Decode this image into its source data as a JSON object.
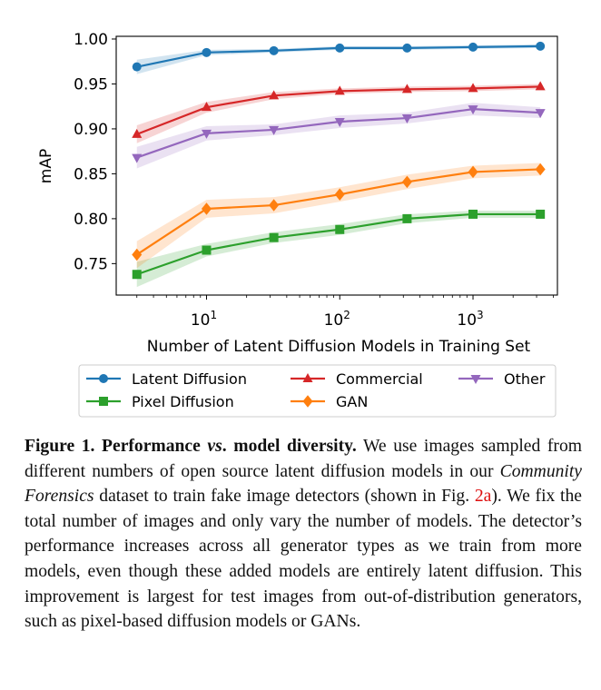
{
  "chart_data": {
    "type": "line",
    "xlabel": "Number of Latent Diffusion Models in Training Set",
    "ylabel": "mAP",
    "xscale": "log",
    "xlim": [
      2.1,
      4300
    ],
    "ylim": [
      0.715,
      1.003
    ],
    "xticks": [
      {
        "value": 10,
        "base": "10",
        "exp": "1"
      },
      {
        "value": 100,
        "base": "10",
        "exp": "2"
      },
      {
        "value": 1000,
        "base": "10",
        "exp": "3"
      }
    ],
    "yticks": [
      {
        "value": 0.75,
        "label": "0.75"
      },
      {
        "value": 0.8,
        "label": "0.80"
      },
      {
        "value": 0.85,
        "label": "0.85"
      },
      {
        "value": 0.9,
        "label": "0.90"
      },
      {
        "value": 0.95,
        "label": "0.95"
      },
      {
        "value": 1.0,
        "label": "1.00"
      }
    ],
    "grid": false,
    "legend_placement": "bottom",
    "x": [
      3,
      10,
      32,
      100,
      320,
      1000,
      3200
    ],
    "series": [
      {
        "name": "Latent Diffusion",
        "color": "#1f77b4",
        "marker": "circle",
        "values": [
          0.969,
          0.985,
          0.987,
          0.99,
          0.99,
          0.991,
          0.992
        ],
        "band": [
          0.008,
          0.003,
          0.002,
          0.002,
          0.002,
          0.002,
          0.002
        ]
      },
      {
        "name": "Commercial",
        "color": "#d62728",
        "marker": "triangle-up",
        "values": [
          0.894,
          0.924,
          0.937,
          0.942,
          0.944,
          0.945,
          0.947
        ],
        "band": [
          0.01,
          0.006,
          0.004,
          0.003,
          0.003,
          0.003,
          0.003
        ]
      },
      {
        "name": "Other",
        "color": "#9467bd",
        "marker": "triangle-down",
        "values": [
          0.868,
          0.895,
          0.899,
          0.908,
          0.912,
          0.922,
          0.918
        ],
        "band": [
          0.012,
          0.008,
          0.006,
          0.007,
          0.006,
          0.007,
          0.006
        ]
      },
      {
        "name": "Pixel Diffusion",
        "color": "#2ca02c",
        "marker": "square",
        "values": [
          0.738,
          0.765,
          0.779,
          0.788,
          0.8,
          0.805,
          0.805
        ],
        "band": [
          0.014,
          0.007,
          0.006,
          0.006,
          0.005,
          0.004,
          0.004
        ]
      },
      {
        "name": "GAN",
        "color": "#ff7f0e",
        "marker": "diamond",
        "values": [
          0.76,
          0.811,
          0.815,
          0.827,
          0.841,
          0.852,
          0.855
        ],
        "band": [
          0.015,
          0.01,
          0.009,
          0.008,
          0.008,
          0.007,
          0.007
        ]
      }
    ],
    "legend_order": [
      0,
      3,
      1,
      4,
      2
    ]
  },
  "caption": {
    "label": "Figure 1.",
    "title_a": "Performance",
    "title_vs": "vs",
    "title_b": ". model diversity.",
    "text1": "We use images sam­pled from different numbers of open source latent diffusion models in our ",
    "italic": "Community Forensics",
    "text2": " dataset to train fake image detectors (shown in Fig. ",
    "ref": "2a",
    "text3": "). We fix the total number of images and only vary the number of models. The detector’s performance increases across all generator types as we train from more models, even though these added models are entirely latent diffusion. This improvement is largest for test images from out-of-distribution generators, such as pixel-based diffusion models or GANs."
  }
}
